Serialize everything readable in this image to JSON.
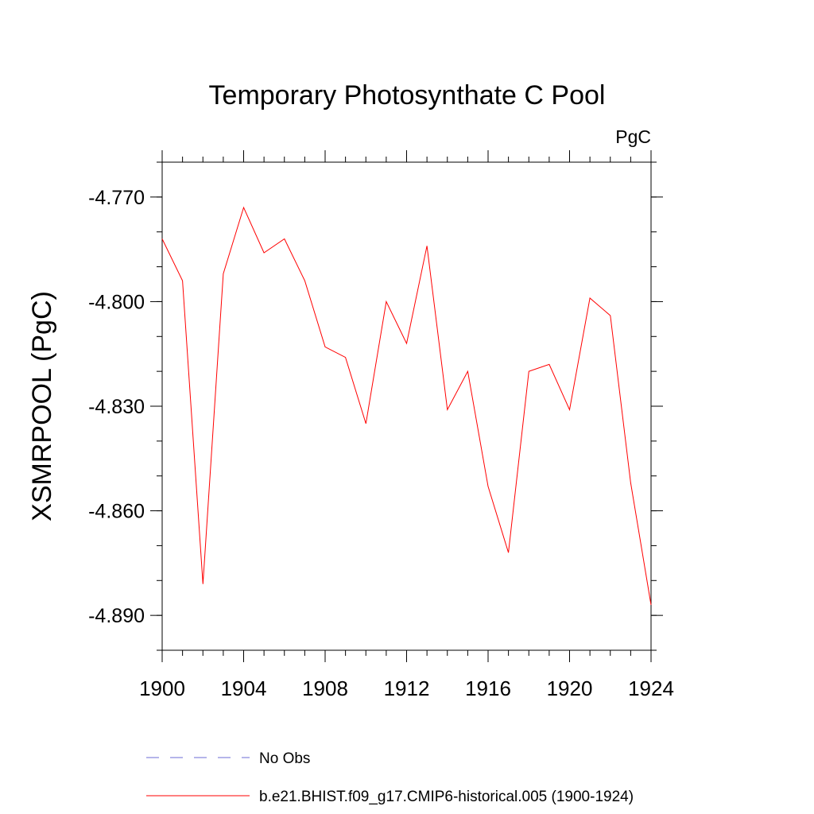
{
  "chart_data": {
    "type": "line",
    "title": "Temporary Photosynthate C Pool",
    "units_label": "PgC",
    "ylabel": "XSMRPOOL  (PgC)",
    "xlabel": "",
    "xlim": [
      1900,
      1924
    ],
    "ylim": [
      -4.9,
      -4.76
    ],
    "x_ticks": [
      1900,
      1904,
      1908,
      1912,
      1916,
      1920,
      1924
    ],
    "y_ticks": [
      -4.77,
      -4.8,
      -4.83,
      -4.86,
      -4.89
    ],
    "y_tick_labels": [
      "-4.770",
      "-4.800",
      "-4.830",
      "-4.860",
      "-4.890"
    ],
    "y_minor_step": 0.01,
    "x_minor_step": 1,
    "grid": false,
    "series": [
      {
        "name": "b.e21.BHIST.f09_g17.CMIP6-historical.005 (1900-1924)",
        "color": "#ff0000",
        "style": "solid",
        "x": [
          1900,
          1901,
          1902,
          1903,
          1904,
          1905,
          1906,
          1907,
          1908,
          1909,
          1910,
          1911,
          1912,
          1913,
          1914,
          1915,
          1916,
          1917,
          1918,
          1919,
          1920,
          1921,
          1922,
          1923,
          1924
        ],
        "values": [
          -4.782,
          -4.794,
          -4.881,
          -4.792,
          -4.773,
          -4.786,
          -4.782,
          -4.794,
          -4.813,
          -4.816,
          -4.835,
          -4.8,
          -4.812,
          -4.784,
          -4.831,
          -4.82,
          -4.853,
          -4.872,
          -4.82,
          -4.818,
          -4.831,
          -4.799,
          -4.804,
          -4.852,
          -4.887
        ]
      }
    ],
    "legend": [
      {
        "label": "No Obs",
        "color": "#6b6bd6",
        "style": "dashed"
      },
      {
        "label": "b.e21.BHIST.f09_g17.CMIP6-historical.005 (1900-1924)",
        "color": "#ff0000",
        "style": "solid"
      }
    ],
    "legend_position": "bottom"
  }
}
